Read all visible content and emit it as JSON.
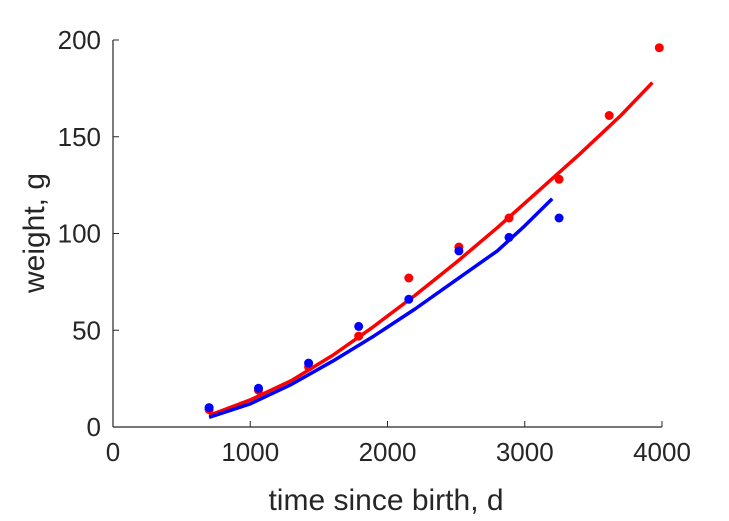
{
  "chart_data": {
    "type": "scatter",
    "title": "",
    "xlabel": "time since birth, d",
    "ylabel": "weight, g",
    "xlim": [
      0,
      4000
    ],
    "ylim": [
      0,
      200
    ],
    "xticks": [
      0,
      1000,
      2000,
      3000,
      4000
    ],
    "yticks": [
      0,
      50,
      100,
      150,
      200
    ],
    "grid": false,
    "legend": "none",
    "series": [
      {
        "color": "#ff0000",
        "points": {
          "x": [
            700,
            1060,
            1425,
            1790,
            2155,
            2520,
            2885,
            3250,
            3615,
            3980
          ],
          "y": [
            9,
            19,
            31,
            47,
            77,
            93,
            108,
            128,
            161,
            196
          ]
        },
        "fit": {
          "x": [
            700,
            1000,
            1300,
            1600,
            1900,
            2200,
            2500,
            2800,
            3100,
            3400,
            3700,
            3930
          ],
          "y": [
            6,
            14,
            24,
            37,
            52,
            68,
            85,
            103,
            122,
            141,
            161,
            178
          ]
        }
      },
      {
        "color": "#0000ff",
        "points": {
          "x": [
            700,
            1060,
            1425,
            1790,
            2155,
            2520,
            2885,
            3250
          ],
          "y": [
            10,
            20,
            33,
            52,
            66,
            91,
            98,
            108
          ]
        },
        "fit": {
          "x": [
            700,
            1000,
            1300,
            1600,
            1900,
            2200,
            2500,
            2800,
            3000,
            3200
          ],
          "y": [
            5,
            12,
            22,
            34,
            47,
            61,
            76,
            91,
            104,
            118
          ]
        }
      }
    ]
  }
}
